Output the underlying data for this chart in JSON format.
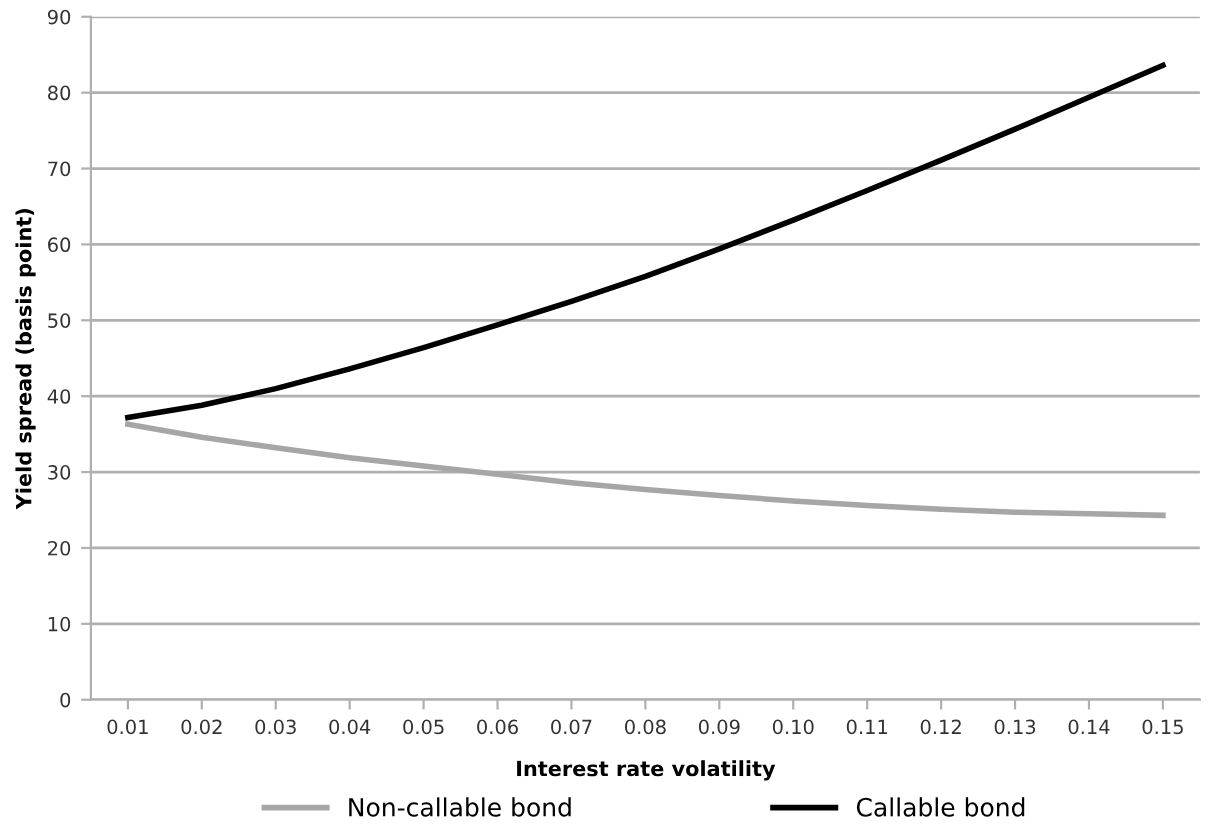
{
  "chart_data": {
    "type": "line",
    "xlabel": "Interest rate volatility",
    "ylabel": "Yield spread (basis point)",
    "categories": [
      "0.01",
      "0.02",
      "0.03",
      "0.04",
      "0.05",
      "0.06",
      "0.07",
      "0.08",
      "0.09",
      "0.10",
      "0.11",
      "0.12",
      "0.13",
      "0.14",
      "0.15"
    ],
    "series": [
      {
        "name": "Non-callable bond",
        "color": "#a6a6a6",
        "values": [
          36.3,
          34.6,
          33.2,
          31.9,
          30.8,
          29.7,
          28.6,
          27.7,
          26.9,
          26.2,
          25.6,
          25.1,
          24.7,
          24.5,
          24.3
        ]
      },
      {
        "name": "Callable bond",
        "color": "#000000",
        "values": [
          37.2,
          38.8,
          41.0,
          43.6,
          46.4,
          49.4,
          52.5,
          55.8,
          59.4,
          63.2,
          67.1,
          71.1,
          75.2,
          79.4,
          83.6
        ]
      }
    ],
    "ylim": [
      0,
      90
    ],
    "yticks": [
      0,
      10,
      20,
      30,
      40,
      50,
      60,
      70,
      80,
      90
    ],
    "grid": "y",
    "legend": "bottom",
    "marker": "none",
    "line_style": "solid"
  }
}
